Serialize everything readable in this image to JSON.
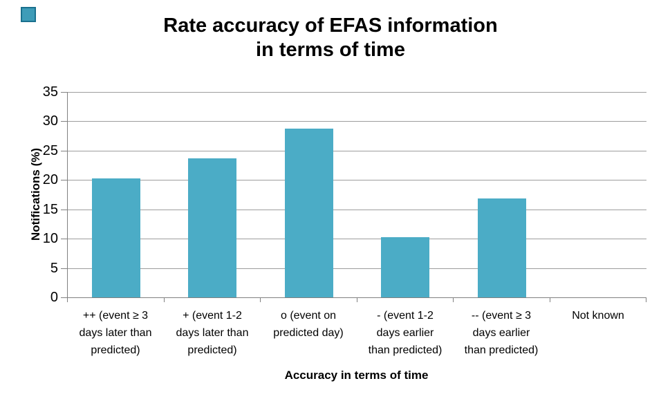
{
  "decoration": {
    "corner_marker_fill": "#3e9cb8"
  },
  "chart_data": {
    "type": "bar",
    "title": "Rate accuracy of EFAS information\nin terms of time",
    "xlabel": "Accuracy in terms of time",
    "ylabel": "Notifications (%)",
    "categories": [
      "++ (event ≥ 3\ndays later than\npredicted)",
      "+ (event 1-2\ndays later than\npredicted)",
      "o (event on\npredicted day)",
      "- (event 1-2\ndays earlier\nthan predicted)",
      "-- (event ≥ 3\ndays earlier\nthan predicted)",
      "Not known"
    ],
    "values": [
      20.3,
      23.7,
      28.8,
      10.2,
      16.9,
      0
    ],
    "ylim": [
      0,
      35
    ],
    "yticks": [
      0,
      5,
      10,
      15,
      20,
      25,
      30,
      35
    ],
    "grid": true,
    "legend": "none",
    "bar_color": "#4bacc6",
    "gridline_color": "#9c9c9c",
    "axis_color": "#808080"
  }
}
